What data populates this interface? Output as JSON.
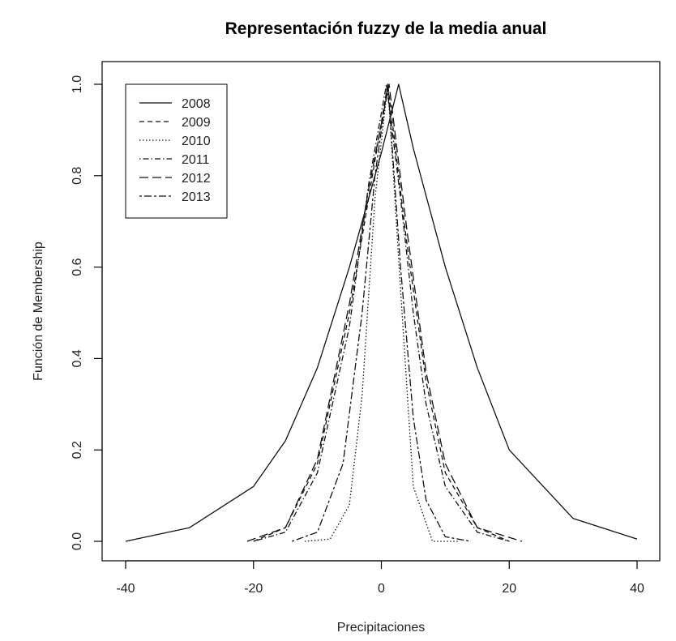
{
  "chart_data": {
    "type": "line",
    "title": "Representación fuzzy de la media anual",
    "xlabel": "Precipitaciones",
    "ylabel": "Función de Membership",
    "xlim": [
      -40,
      40
    ],
    "ylim": [
      0,
      1
    ],
    "xticks": [
      -40,
      -20,
      0,
      20,
      40
    ],
    "xtick_labels": [
      "-40",
      "-20",
      "0",
      "20",
      "40"
    ],
    "yticks": [
      0,
      0.2,
      0.4,
      0.6,
      0.8,
      1.0
    ],
    "ytick_labels": [
      "0.0",
      "0.2",
      "0.4",
      "0.6",
      "0.8",
      "1.0"
    ],
    "grid": false,
    "legend_position": "top-left",
    "series": [
      {
        "name": "2008",
        "line_style": "solid",
        "x": [
          -40,
          -30,
          -20,
          -15,
          -10,
          -5,
          0,
          2.7,
          5,
          10,
          15,
          20,
          30,
          40
        ],
        "y": [
          0.0,
          0.03,
          0.12,
          0.22,
          0.38,
          0.6,
          0.85,
          1.0,
          0.86,
          0.6,
          0.38,
          0.2,
          0.05,
          0.005
        ]
      },
      {
        "name": "2009",
        "line_style": "dashed",
        "x": [
          -20,
          -15,
          -10,
          -5,
          -2,
          1,
          4,
          7,
          10,
          15,
          20
        ],
        "y": [
          0.0,
          0.03,
          0.17,
          0.5,
          0.75,
          1.0,
          0.65,
          0.35,
          0.15,
          0.03,
          0.0
        ]
      },
      {
        "name": "2010",
        "line_style": "dotted",
        "x": [
          -12,
          -8,
          -5,
          -3,
          -1,
          1,
          3,
          5,
          8,
          12
        ],
        "y": [
          0.0,
          0.005,
          0.08,
          0.32,
          0.75,
          1.0,
          0.55,
          0.12,
          0.0,
          0.0
        ]
      },
      {
        "name": "2011",
        "line_style": "dotdash",
        "x": [
          -20,
          -15,
          -10,
          -5,
          -2,
          0.8,
          3,
          5,
          7,
          10,
          15,
          20
        ],
        "y": [
          0.0,
          0.02,
          0.15,
          0.47,
          0.78,
          1.0,
          0.75,
          0.5,
          0.3,
          0.12,
          0.02,
          0.0
        ]
      },
      {
        "name": "2012",
        "line_style": "longdash",
        "x": [
          -21,
          -15,
          -10,
          -5,
          -2,
          1.2,
          4,
          7,
          10,
          15,
          22
        ],
        "y": [
          0.0,
          0.03,
          0.18,
          0.52,
          0.77,
          1.0,
          0.68,
          0.37,
          0.17,
          0.03,
          0.0
        ]
      },
      {
        "name": "2013",
        "line_style": "twodash",
        "x": [
          -14,
          -10,
          -6,
          -3,
          -1,
          1,
          3,
          5,
          7,
          10,
          14
        ],
        "y": [
          0.0,
          0.02,
          0.17,
          0.5,
          0.8,
          1.0,
          0.6,
          0.27,
          0.09,
          0.01,
          0.0
        ]
      }
    ]
  }
}
